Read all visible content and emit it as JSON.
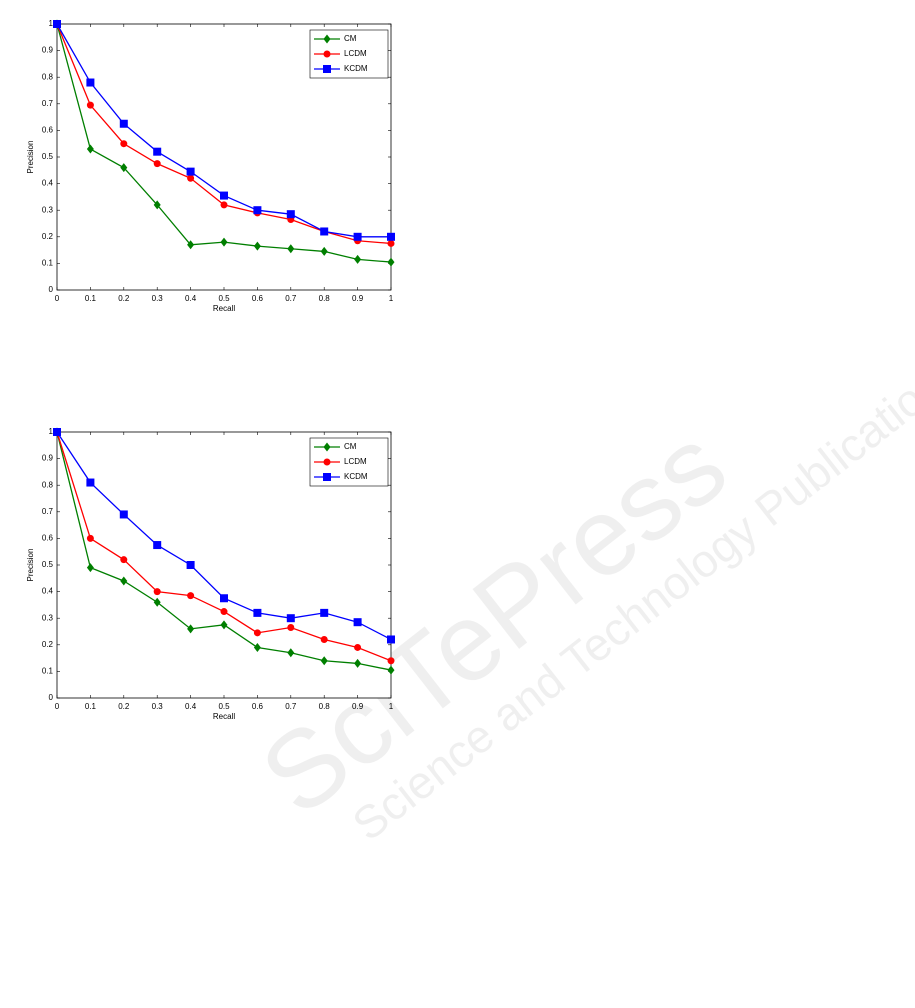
{
  "chart_data": [
    {
      "type": "line",
      "xlabel": "Recall",
      "ylabel": "Precision",
      "x": [
        0,
        0.1,
        0.2,
        0.3,
        0.4,
        0.5,
        0.6,
        0.7,
        0.8,
        0.9,
        1
      ],
      "xlim": [
        0,
        1
      ],
      "ylim": [
        0,
        1
      ],
      "xticks": [
        0,
        0.1,
        0.2,
        0.3,
        0.4,
        0.5,
        0.6,
        0.7,
        0.8,
        0.9,
        1
      ],
      "yticks": [
        0,
        0.1,
        0.2,
        0.3,
        0.4,
        0.5,
        0.6,
        0.7,
        0.8,
        0.9,
        1
      ],
      "legend": "upper right",
      "series": [
        {
          "name": "CM",
          "color": "#007f00",
          "marker": "diamond",
          "values": [
            1,
            0.53,
            0.46,
            0.32,
            0.17,
            0.18,
            0.165,
            0.155,
            0.145,
            0.115,
            0.105
          ]
        },
        {
          "name": "LCDM",
          "color": "#ff0000",
          "marker": "circle",
          "values": [
            1,
            0.695,
            0.55,
            0.475,
            0.42,
            0.32,
            0.29,
            0.265,
            0.22,
            0.185,
            0.175
          ]
        },
        {
          "name": "KCDM",
          "color": "#0000ff",
          "marker": "square",
          "values": [
            1,
            0.78,
            0.625,
            0.52,
            0.445,
            0.355,
            0.3,
            0.285,
            0.22,
            0.2,
            0.2
          ]
        }
      ]
    },
    {
      "type": "line",
      "xlabel": "Recall",
      "ylabel": "Precision",
      "x": [
        0,
        0.1,
        0.2,
        0.3,
        0.4,
        0.5,
        0.6,
        0.7,
        0.8,
        0.9,
        1
      ],
      "xlim": [
        0,
        1
      ],
      "ylim": [
        0,
        1
      ],
      "xticks": [
        0,
        0.1,
        0.2,
        0.3,
        0.4,
        0.5,
        0.6,
        0.7,
        0.8,
        0.9,
        1
      ],
      "yticks": [
        0,
        0.1,
        0.2,
        0.3,
        0.4,
        0.5,
        0.6,
        0.7,
        0.8,
        0.9,
        1
      ],
      "legend": "upper right",
      "series": [
        {
          "name": "CM",
          "color": "#007f00",
          "marker": "diamond",
          "values": [
            1,
            0.49,
            0.44,
            0.36,
            0.26,
            0.275,
            0.19,
            0.17,
            0.14,
            0.13,
            0.105
          ]
        },
        {
          "name": "LCDM",
          "color": "#ff0000",
          "marker": "circle",
          "values": [
            1,
            0.6,
            0.52,
            0.4,
            0.385,
            0.325,
            0.245,
            0.265,
            0.22,
            0.19,
            0.14
          ]
        },
        {
          "name": "KCDM",
          "color": "#0000ff",
          "marker": "square",
          "values": [
            1,
            0.81,
            0.69,
            0.575,
            0.5,
            0.375,
            0.32,
            0.3,
            0.32,
            0.285,
            0.22
          ]
        }
      ]
    }
  ],
  "watermark": [
    "SciTePress",
    "Science and Technology Publications"
  ]
}
